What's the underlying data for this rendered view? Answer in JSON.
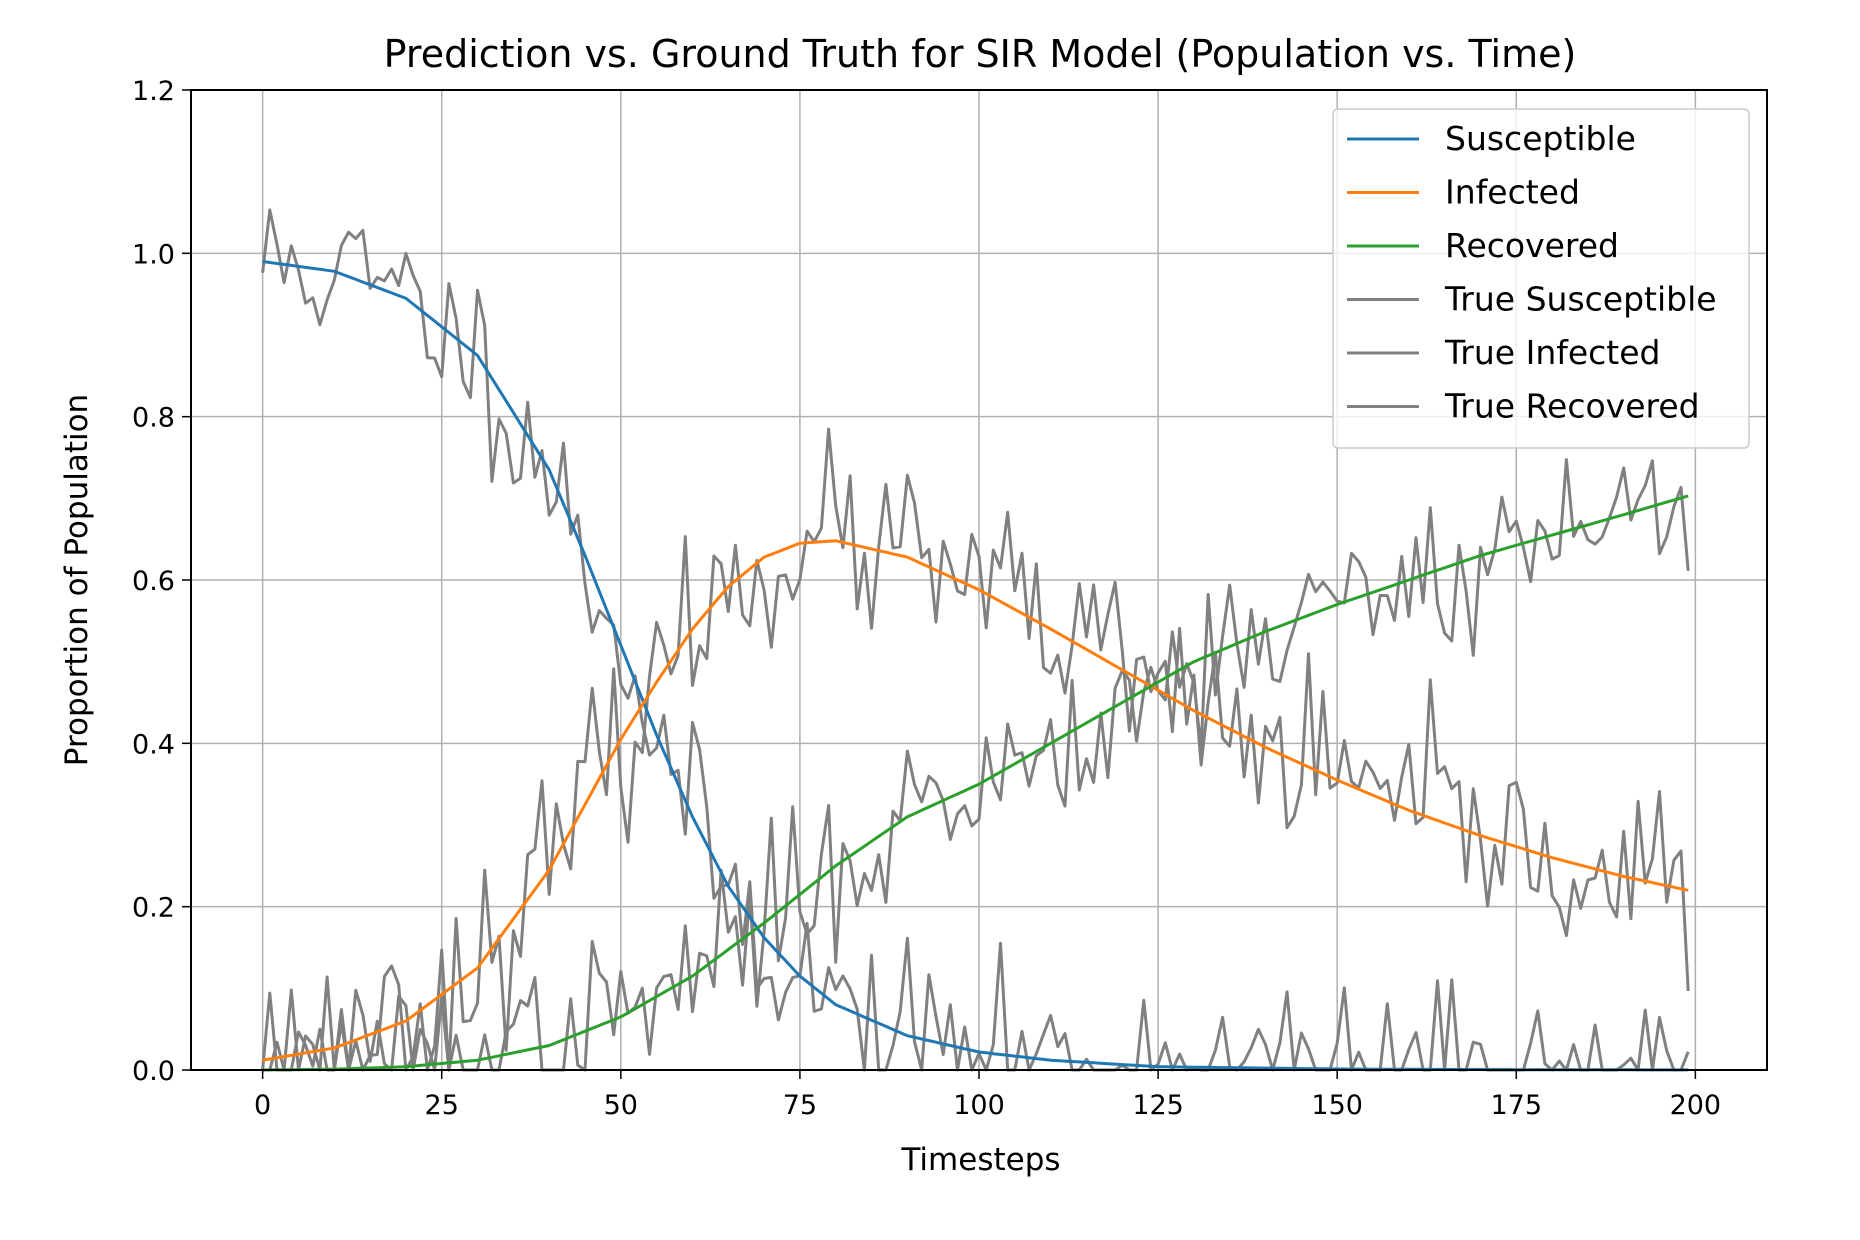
{
  "chart_data": {
    "type": "line",
    "title": "Prediction vs. Ground Truth for SIR Model (Population vs. Time)",
    "xlabel": "Timesteps",
    "ylabel": "Proportion of Population",
    "xlim": [
      -10,
      210
    ],
    "ylim": [
      0,
      1.2
    ],
    "xticks": [
      0,
      25,
      50,
      75,
      100,
      125,
      150,
      175,
      200
    ],
    "yticks": [
      0.0,
      0.2,
      0.4,
      0.6,
      0.8,
      1.0,
      1.2
    ],
    "xtick_labels": [
      "0",
      "25",
      "50",
      "75",
      "100",
      "125",
      "150",
      "175",
      "200"
    ],
    "ytick_labels": [
      "0.0",
      "0.2",
      "0.4",
      "0.6",
      "0.8",
      "1.0",
      "1.2"
    ],
    "grid": true,
    "legend_position": "top-right",
    "x_range": [
      0,
      199
    ],
    "series": [
      {
        "name": "Susceptible",
        "color": "#1f77b4",
        "points": [
          [
            0,
            0.99
          ],
          [
            10,
            0.978
          ],
          [
            20,
            0.945
          ],
          [
            30,
            0.875
          ],
          [
            40,
            0.735
          ],
          [
            45,
            0.63
          ],
          [
            50,
            0.52
          ],
          [
            55,
            0.41
          ],
          [
            60,
            0.31
          ],
          [
            65,
            0.225
          ],
          [
            70,
            0.162
          ],
          [
            75,
            0.115
          ],
          [
            80,
            0.08
          ],
          [
            90,
            0.042
          ],
          [
            100,
            0.022
          ],
          [
            110,
            0.012
          ],
          [
            125,
            0.004
          ],
          [
            150,
            0.0012
          ],
          [
            175,
            0.0004
          ],
          [
            199,
            0.0001
          ]
        ]
      },
      {
        "name": "Infected",
        "color": "#ff7f0e",
        "points": [
          [
            0,
            0.012
          ],
          [
            10,
            0.027
          ],
          [
            20,
            0.06
          ],
          [
            30,
            0.125
          ],
          [
            40,
            0.245
          ],
          [
            45,
            0.325
          ],
          [
            50,
            0.405
          ],
          [
            55,
            0.475
          ],
          [
            60,
            0.54
          ],
          [
            65,
            0.592
          ],
          [
            70,
            0.628
          ],
          [
            75,
            0.645
          ],
          [
            80,
            0.648
          ],
          [
            90,
            0.628
          ],
          [
            100,
            0.588
          ],
          [
            110,
            0.54
          ],
          [
            120,
            0.49
          ],
          [
            130,
            0.44
          ],
          [
            140,
            0.395
          ],
          [
            150,
            0.355
          ],
          [
            160,
            0.318
          ],
          [
            170,
            0.287
          ],
          [
            180,
            0.26
          ],
          [
            190,
            0.237
          ],
          [
            199,
            0.22
          ]
        ]
      },
      {
        "name": "Recovered",
        "color": "#2ca02c",
        "points": [
          [
            0,
            0.0
          ],
          [
            10,
            0.001
          ],
          [
            20,
            0.004
          ],
          [
            30,
            0.012
          ],
          [
            40,
            0.03
          ],
          [
            50,
            0.065
          ],
          [
            60,
            0.115
          ],
          [
            70,
            0.18
          ],
          [
            80,
            0.25
          ],
          [
            90,
            0.31
          ],
          [
            100,
            0.35
          ],
          [
            110,
            0.4
          ],
          [
            120,
            0.45
          ],
          [
            130,
            0.5
          ],
          [
            140,
            0.537
          ],
          [
            150,
            0.57
          ],
          [
            160,
            0.6
          ],
          [
            170,
            0.63
          ],
          [
            180,
            0.655
          ],
          [
            190,
            0.68
          ],
          [
            199,
            0.703
          ]
        ]
      }
    ],
    "truth_series": [
      {
        "name": "True Susceptible",
        "color": "#808080",
        "base": "Susceptible",
        "noise": 0.05,
        "seed": 11
      },
      {
        "name": "True Infected",
        "color": "#808080",
        "base": "Infected",
        "noise": 0.055,
        "seed": 23
      },
      {
        "name": "True Recovered",
        "color": "#808080",
        "base": "Recovered",
        "noise": 0.05,
        "seed": 37
      }
    ]
  }
}
